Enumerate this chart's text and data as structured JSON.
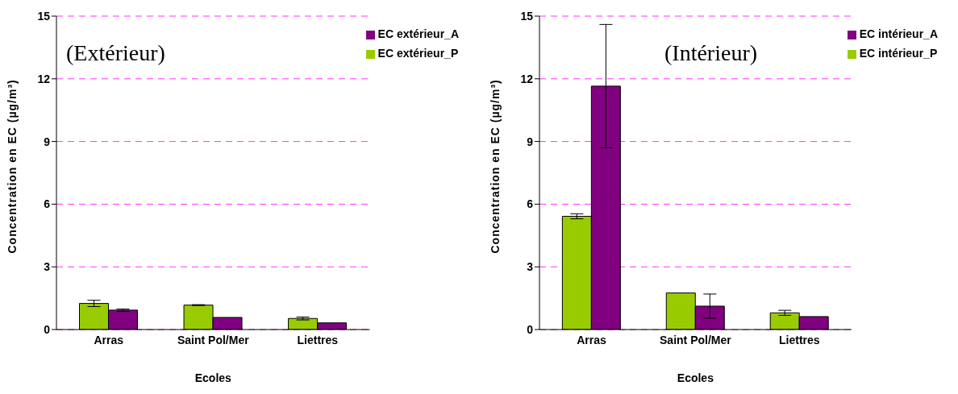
{
  "chart_data": [
    {
      "type": "bar",
      "annotations": [
        "(Extérieur)"
      ],
      "xlabel": "Ecoles",
      "ylabel": "Concentration en EC (µg/m³)",
      "categories": [
        "Arras",
        "Saint Pol/Mer",
        "Liettres"
      ],
      "series": [
        {
          "name": "EC extérieur_P",
          "color": "#99cc00",
          "values": [
            1.25,
            1.17,
            0.53
          ],
          "errors": [
            0.15,
            0.02,
            0.07
          ]
        },
        {
          "name": "EC extérieur_A",
          "color": "#800080",
          "values": [
            0.93,
            0.58,
            0.32
          ],
          "errors": [
            0.05,
            null,
            null
          ]
        }
      ],
      "ylim": [
        0,
        15
      ],
      "yticks": [
        0,
        3,
        6,
        9,
        12,
        15
      ],
      "grid": "y",
      "legend": "top right"
    },
    {
      "type": "bar",
      "annotations": [
        "(Intérieur)"
      ],
      "xlabel": "Ecoles",
      "ylabel": "Concentration en EC (µg/m³)",
      "categories": [
        "Arras",
        "Saint Pol/Mer",
        "Liettres"
      ],
      "series": [
        {
          "name": "EC intérieur_P",
          "color": "#99cc00",
          "values": [
            5.42,
            1.75,
            0.8
          ],
          "errors": [
            0.12,
            null,
            0.12
          ]
        },
        {
          "name": "EC intérieur_A",
          "color": "#800080",
          "values": [
            11.65,
            1.12,
            0.62
          ],
          "errors": [
            2.95,
            0.58,
            null
          ]
        }
      ],
      "ylim": [
        0,
        15
      ],
      "yticks": [
        0,
        3,
        6,
        9,
        12,
        15
      ],
      "grid": "y",
      "legend": "top right"
    }
  ]
}
